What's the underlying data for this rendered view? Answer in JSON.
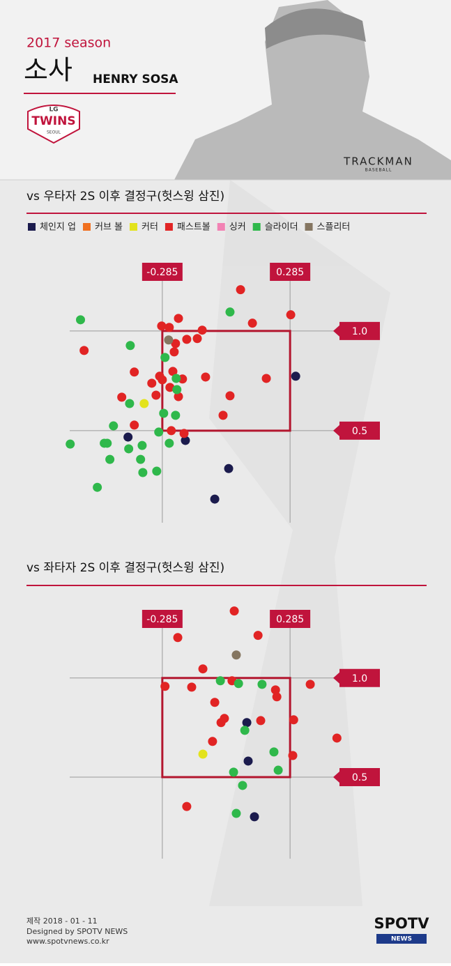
{
  "header": {
    "season": "2017 season",
    "name_kr": "소사",
    "name_en": "HENRY SOSA",
    "team_top": "LG",
    "team": "TWINS",
    "team_city": "SEOUL",
    "brand": "TRACKMAN",
    "brand_sub": "BASEBALL"
  },
  "footer": {
    "date": "제작 2018 - 01 - 11",
    "credit": "Designed by SPOTV NEWS",
    "url": "www.spotvnews.co.kr",
    "logo": "SPOTV",
    "logo_sub": "NEWS"
  },
  "chart_data": [
    {
      "type": "scatter",
      "title": "vs 우타자 2S 이후 결정구(헛스윙 삼진)",
      "xlim": [
        -0.72,
        0.72
      ],
      "ylim": [
        0,
        1.3
      ],
      "xticks": [
        -0.285,
        0.285
      ],
      "yticks": [
        {
          "value": 1,
          "label": "1.0"
        },
        0.5
      ],
      "series": [
        {
          "name": "체인지 업",
          "color": "#1b1b4d",
          "x": [
            0.31,
            -0.438,
            -0.182,
            0.011,
            -0.051
          ],
          "y": [
            0.773,
            0.468,
            0.451,
            0.31,
            0.157
          ]
        },
        {
          "name": "커브 볼",
          "color": "#f07020",
          "x": [],
          "y": []
        },
        {
          "name": "커터",
          "color": "#e3e31c",
          "x": [
            -0.366
          ],
          "y": [
            0.636
          ]
        },
        {
          "name": "패스트볼",
          "color": "#e12424",
          "x": [
            0.064,
            0.288,
            -0.213,
            0.117,
            -0.288,
            -0.254,
            -0.107,
            -0.176,
            -0.129,
            -0.226,
            -0.634,
            -0.232,
            -0.41,
            -0.297,
            -0.238,
            -0.092,
            0.179,
            -0.332,
            -0.285,
            -0.195,
            -0.251,
            -0.313,
            -0.466,
            0.017,
            -0.213,
            -0.41,
            -0.014,
            -0.245,
            -0.188
          ],
          "y": [
            1.207,
            1.081,
            1.063,
            1.039,
            1.025,
            1.018,
            1.004,
            0.958,
            0.962,
            0.937,
            0.902,
            0.895,
            0.794,
            0.773,
            0.797,
            0.769,
            0.762,
            0.738,
            0.755,
            0.759,
            0.717,
            0.678,
            0.668,
            0.675,
            0.671,
            0.528,
            0.577,
            0.5,
            0.486
          ]
        },
        {
          "name": "싱커",
          "color": "#f282b4",
          "x": [],
          "y": []
        },
        {
          "name": "슬라이더",
          "color": "#2fb84b",
          "x": [
            -0.65,
            0.017,
            -0.428,
            -0.273,
            -0.223,
            -0.22,
            -0.431,
            -0.279,
            -0.226,
            -0.503,
            -0.301,
            -0.696,
            -0.544,
            -0.531,
            -0.435,
            -0.375,
            -0.254,
            -0.519,
            -0.382,
            -0.372,
            -0.31,
            -0.575
          ],
          "y": [
            1.056,
            1.095,
            0.927,
            0.867,
            0.762,
            0.706,
            0.636,
            0.587,
            0.577,
            0.524,
            0.493,
            0.433,
            0.437,
            0.437,
            0.409,
            0.426,
            0.437,
            0.356,
            0.356,
            0.29,
            0.297,
            0.216
          ]
        },
        {
          "name": "스플리터",
          "color": "#857661",
          "x": [
            -0.257
          ],
          "y": [
            0.955
          ]
        }
      ]
    },
    {
      "type": "scatter",
      "title": "vs 좌타자 2S 이후 결정구(헛스윙 삼진)",
      "xlim": [
        -0.72,
        0.72
      ],
      "ylim": [
        0.05,
        1.4
      ],
      "xticks": [
        -0.285,
        0.285
      ],
      "yticks": [
        {
          "value": 1,
          "label": "1.0"
        },
        0.5
      ],
      "series": [
        {
          "color": "#1b1b4d",
          "x": [
            0.092,
            0.098,
            0.126
          ],
          "y": [
            0.775,
            0.581,
            0.3
          ]
        },
        {
          "color": "#e3e31c",
          "x": [
            -0.104
          ],
          "y": [
            0.616
          ]
        },
        {
          "color": "#e12424",
          "x": [
            0.036,
            -0.216,
            0.142,
            -0.104,
            -0.273,
            -0.154,
            0.026,
            0.22,
            0.226,
            0.375,
            -0.051,
            -0.008,
            -0.023,
            0.154,
            0.301,
            -0.061,
            0.494,
            0.297,
            -0.176
          ],
          "y": [
            1.338,
            1.204,
            1.215,
            1.046,
            0.958,
            0.954,
            0.986,
            0.94,
            0.905,
            0.968,
            0.877,
            0.796,
            0.775,
            0.785,
            0.789,
            0.68,
            0.697,
            0.609,
            0.352
          ]
        },
        {
          "color": "#2fb84b",
          "x": [
            -0.026,
            0.055,
            0.16,
            0.083,
            0.213,
            0.232,
            0.033,
            0.073,
            0.045
          ],
          "y": [
            0.986,
            0.972,
            0.968,
            0.736,
            0.627,
            0.535,
            0.525,
            0.458,
            0.317
          ]
        },
        {
          "color": "#857661",
          "x": [
            0.045
          ],
          "y": [
            1.116
          ]
        }
      ]
    }
  ]
}
